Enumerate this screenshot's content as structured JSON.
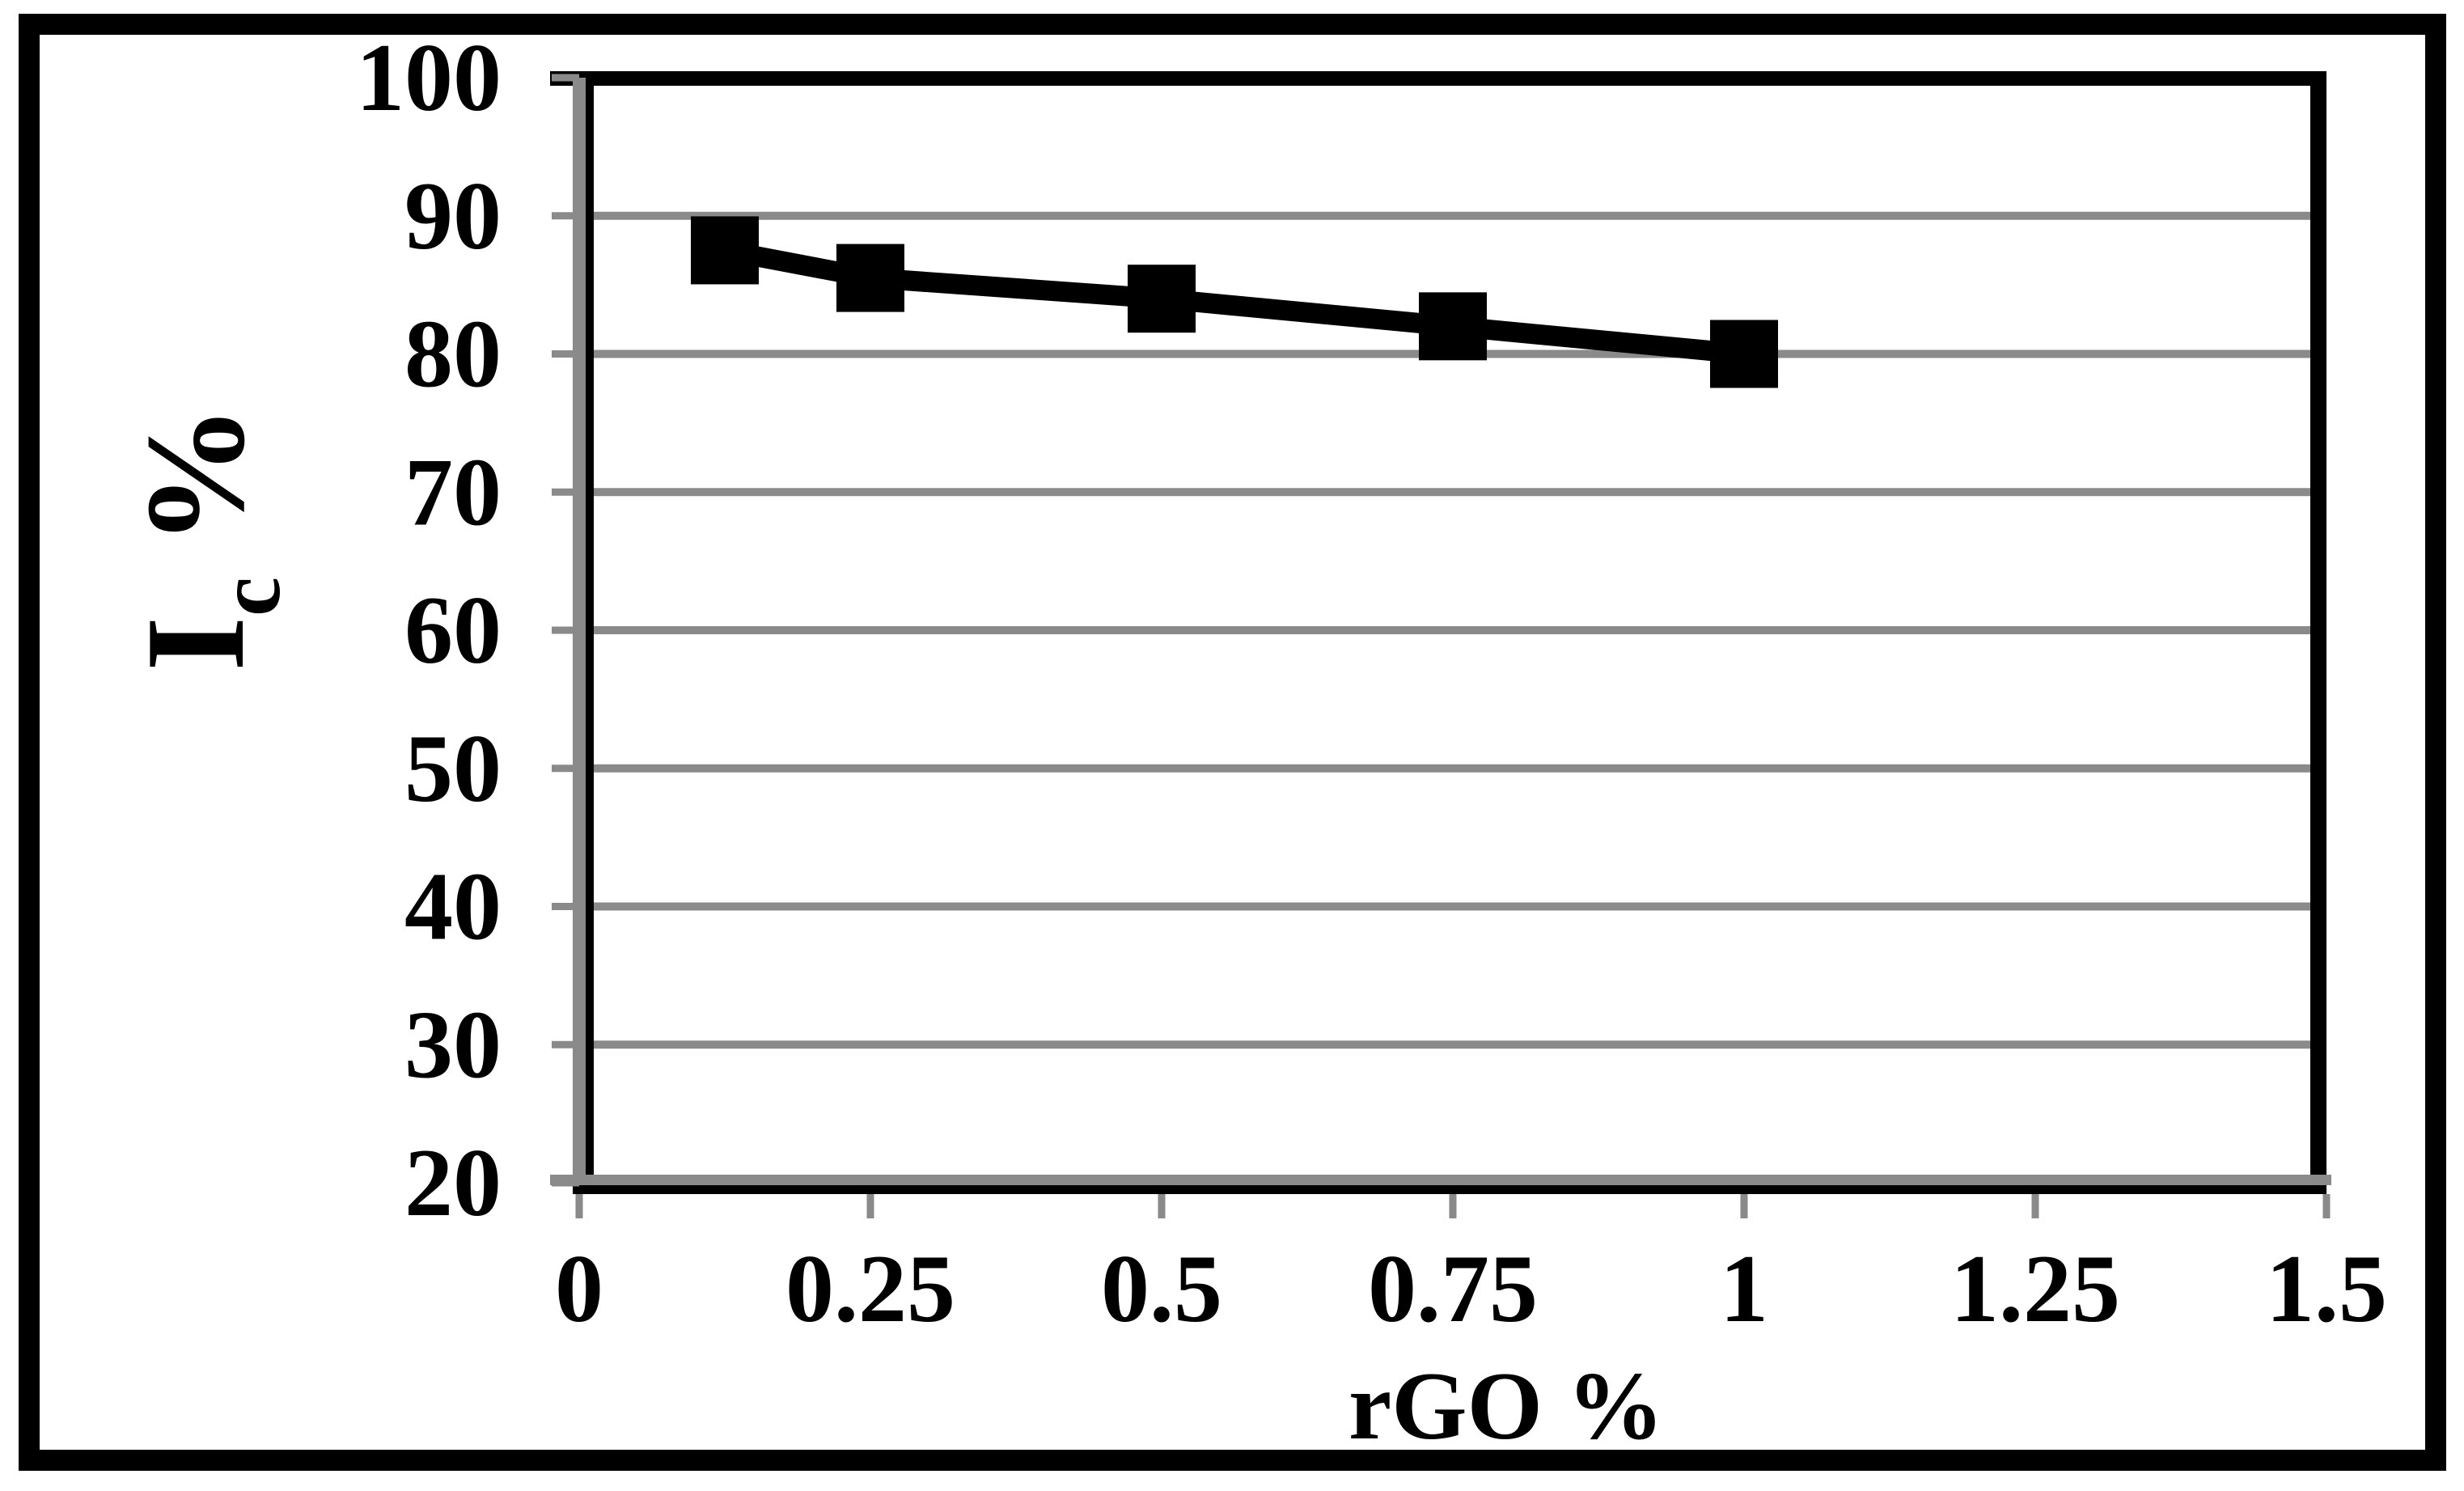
{
  "figure": {
    "background_color": "#ffffff",
    "border_color": "#000000"
  },
  "chart_data": {
    "type": "line",
    "title": "",
    "xlabel": "rGO %",
    "ylabel": "Ic %",
    "ylabel_parts": {
      "main": "I",
      "sub": "c",
      "suffix": "%"
    },
    "x": [
      0.125,
      0.25,
      0.5,
      0.75,
      1
    ],
    "values": [
      87.5,
      85.5,
      84,
      82,
      80
    ],
    "xlim": [
      0,
      1.5
    ],
    "ylim": [
      20,
      100
    ],
    "xticks": [
      {
        "v": 0,
        "label": "0"
      },
      {
        "v": 0.25,
        "label": "0.25"
      },
      {
        "v": 0.5,
        "label": "0.5"
      },
      {
        "v": 0.75,
        "label": "0.75"
      },
      {
        "v": 1,
        "label": "1"
      },
      {
        "v": 1.25,
        "label": "1.25"
      },
      {
        "v": 1.5,
        "label": "1.5"
      }
    ],
    "yticks": [
      {
        "v": 20,
        "label": "20"
      },
      {
        "v": 30,
        "label": "30"
      },
      {
        "v": 40,
        "label": "40"
      },
      {
        "v": 50,
        "label": "50"
      },
      {
        "v": 60,
        "label": "60"
      },
      {
        "v": 70,
        "label": "70"
      },
      {
        "v": 80,
        "label": "80"
      },
      {
        "v": 90,
        "label": "90"
      },
      {
        "v": 100,
        "label": "100"
      }
    ],
    "grid": "horizontal",
    "legend": "none",
    "marker": "square",
    "colors": {
      "line": "#000000",
      "marker": "#000000",
      "grid": "#8a8a8a",
      "axis": "#000000",
      "axis_shadow": "#8a8a8a",
      "background": "#ffffff",
      "border": "#000000"
    }
  }
}
